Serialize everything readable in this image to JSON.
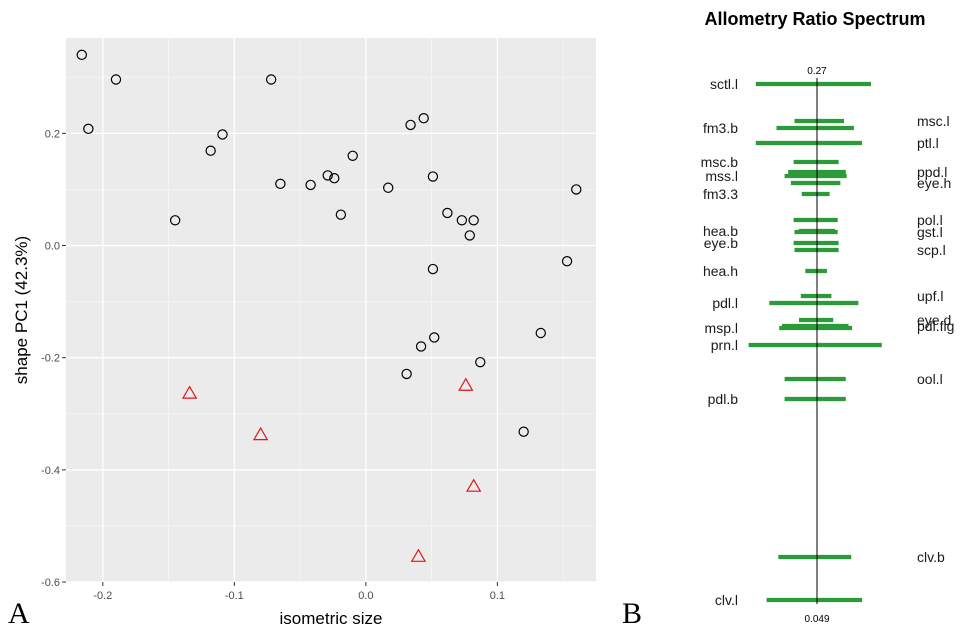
{
  "panels": {
    "a": "A",
    "b": "B"
  },
  "chart_data": [
    {
      "type": "scatter",
      "title": "",
      "xlabel": "isometric size",
      "ylabel": "shape PC1 (42.3%)",
      "xlim": [
        -0.228,
        0.175
      ],
      "ylim": [
        -0.6,
        0.37
      ],
      "xticks": [
        -0.2,
        -0.1,
        0.0,
        0.1
      ],
      "xtick_labels": [
        "-0.2",
        "-0.1",
        "0.0",
        "0.1"
      ],
      "yticks": [
        -0.6,
        -0.4,
        -0.2,
        0.0,
        0.2
      ],
      "ytick_labels": [
        "-0.6",
        "-0.4",
        "-0.2",
        "0.0",
        "0.2"
      ],
      "grid": true,
      "series": [
        {
          "marker": "circle",
          "color": "#000000",
          "points": [
            [
              -0.216,
              0.34
            ],
            [
              -0.19,
              0.296
            ],
            [
              -0.211,
              0.208
            ],
            [
              -0.145,
              0.045
            ],
            [
              -0.118,
              0.169
            ],
            [
              -0.109,
              0.198
            ],
            [
              -0.072,
              0.296
            ],
            [
              -0.065,
              0.11
            ],
            [
              -0.042,
              0.108
            ],
            [
              -0.029,
              0.125
            ],
            [
              -0.024,
              0.12
            ],
            [
              -0.019,
              0.055
            ],
            [
              -0.01,
              0.16
            ],
            [
              0.017,
              0.103
            ],
            [
              0.034,
              0.215
            ],
            [
              0.044,
              0.227
            ],
            [
              0.051,
              0.123
            ],
            [
              0.062,
              0.058
            ],
            [
              0.073,
              0.045
            ],
            [
              0.082,
              0.045
            ],
            [
              0.079,
              0.018
            ],
            [
              0.051,
              -0.042
            ],
            [
              0.052,
              -0.164
            ],
            [
              0.042,
              -0.18
            ],
            [
              0.087,
              -0.208
            ],
            [
              0.031,
              -0.229
            ],
            [
              0.12,
              -0.332
            ],
            [
              0.133,
              -0.156
            ],
            [
              0.153,
              -0.028
            ],
            [
              0.16,
              0.1
            ]
          ]
        },
        {
          "marker": "triangle",
          "color": "#e0161b",
          "points": [
            [
              -0.134,
              -0.264
            ],
            [
              -0.08,
              -0.338
            ],
            [
              0.076,
              -0.25
            ],
            [
              0.082,
              -0.43
            ],
            [
              0.04,
              -0.555
            ]
          ]
        }
      ]
    },
    {
      "type": "bar",
      "title": "Allometry Ratio Spectrum",
      "center_label": "0.27",
      "bottom_label": "0.049",
      "line_color": "#2b9b3a",
      "items": [
        {
          "label": "sctl.l",
          "side": "left",
          "lo": -0.68,
          "hi": 0.6,
          "pos": 84
        },
        {
          "label": "msc.l",
          "side": "right",
          "lo": -0.25,
          "hi": 0.3,
          "pos": 121
        },
        {
          "label": "fm3.b",
          "side": "left",
          "lo": -0.45,
          "hi": 0.41,
          "pos": 128
        },
        {
          "label": "ptl.l",
          "side": "right",
          "lo": -0.68,
          "hi": 0.5,
          "pos": 143
        },
        {
          "label": "msc.b",
          "side": "left",
          "lo": -0.26,
          "hi": 0.24,
          "pos": 162
        },
        {
          "label": "ppd.l",
          "side": "right",
          "lo": -0.32,
          "hi": 0.32,
          "pos": 172
        },
        {
          "label": "mss.l",
          "side": "left",
          "lo": -0.36,
          "hi": 0.33,
          "pos": 176
        },
        {
          "label": "eye.h",
          "side": "right",
          "lo": -0.29,
          "hi": 0.26,
          "pos": 183
        },
        {
          "label": "fm3.3",
          "side": "left",
          "lo": -0.17,
          "hi": 0.14,
          "pos": 194
        },
        {
          "label": "pol.l",
          "side": "right",
          "lo": -0.26,
          "hi": 0.23,
          "pos": 220
        },
        {
          "label": "hea.b",
          "side": "left",
          "lo": -0.2,
          "hi": 0.2,
          "pos": 231
        },
        {
          "label": "gst.l",
          "side": "right",
          "lo": -0.25,
          "hi": 0.23,
          "pos": 232
        },
        {
          "label": "eye.b",
          "side": "left",
          "lo": -0.26,
          "hi": 0.24,
          "pos": 243
        },
        {
          "label": "scp.l",
          "side": "right",
          "lo": -0.25,
          "hi": 0.24,
          "pos": 250
        },
        {
          "label": "hea.h",
          "side": "left",
          "lo": -0.13,
          "hi": 0.11,
          "pos": 271
        },
        {
          "label": "upf.l",
          "side": "right",
          "lo": -0.18,
          "hi": 0.16,
          "pos": 296
        },
        {
          "label": "pdl.l",
          "side": "left",
          "lo": -0.53,
          "hi": 0.46,
          "pos": 303
        },
        {
          "label": "eye.d",
          "side": "right",
          "lo": -0.2,
          "hi": 0.18,
          "pos": 320
        },
        {
          "label": "pdl.fig",
          "side": "right",
          "lo": -0.39,
          "hi": 0.35,
          "pos": 326
        },
        {
          "label": "msp.l",
          "side": "left",
          "lo": -0.42,
          "hi": 0.39,
          "pos": 328
        },
        {
          "label": "prn.l",
          "side": "left",
          "lo": -0.76,
          "hi": 0.72,
          "pos": 345
        },
        {
          "label": "ool.l",
          "side": "right",
          "lo": -0.36,
          "hi": 0.32,
          "pos": 379
        },
        {
          "label": "pdl.b",
          "side": "left",
          "lo": -0.36,
          "hi": 0.32,
          "pos": 399
        },
        {
          "label": "clv.b",
          "side": "right",
          "lo": -0.43,
          "hi": 0.38,
          "pos": 557
        },
        {
          "label": "clv.l",
          "side": "left",
          "lo": -0.56,
          "hi": 0.5,
          "pos": 600
        }
      ]
    }
  ]
}
